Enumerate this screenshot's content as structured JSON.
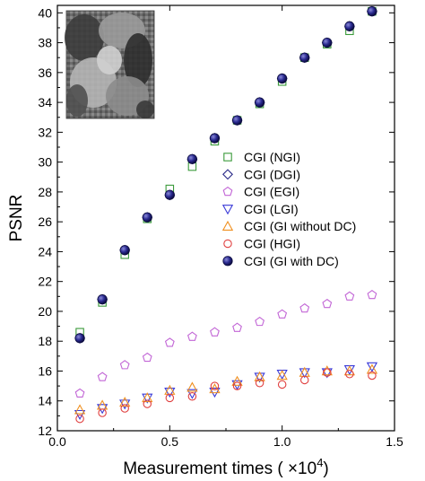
{
  "chart_data": {
    "type": "scatter",
    "xlabel": "Measurement times ( ×10",
    "xlabel_exponent": "4",
    "xlabel_suffix": ")",
    "ylabel": "PSNR",
    "xlim": [
      0.0,
      1.5
    ],
    "ylim": [
      12,
      40.5
    ],
    "x_ticks": [
      0.0,
      0.5,
      1.0,
      1.5
    ],
    "x_tick_labels": [
      "0.0",
      "0.5",
      "1.0",
      "1.5"
    ],
    "y_ticks": [
      12,
      14,
      16,
      18,
      20,
      22,
      24,
      26,
      28,
      30,
      32,
      34,
      36,
      38,
      40
    ],
    "y_tick_labels": [
      "12",
      "14",
      "16",
      "18",
      "20",
      "22",
      "24",
      "26",
      "28",
      "30",
      "32",
      "34",
      "36",
      "38",
      "40"
    ],
    "grid": false,
    "legend_position": "center-right",
    "inset_image": "grayscale-peppers-thumbnail",
    "x": [
      0.1,
      0.2,
      0.3,
      0.4,
      0.5,
      0.6,
      0.7,
      0.8,
      0.9,
      1.0,
      1.1,
      1.2,
      1.3,
      1.4
    ],
    "series": [
      {
        "name": "CGI (NGI)",
        "marker": "square",
        "color": "#3a9a3a",
        "filled": false,
        "values": [
          18.6,
          20.6,
          23.8,
          26.2,
          28.2,
          29.7,
          31.4,
          32.8,
          33.9,
          35.4,
          37.0,
          37.9,
          38.8,
          40.1
        ]
      },
      {
        "name": "CGI (DGI)",
        "marker": "diamond",
        "color": "#2a2a88",
        "filled": false,
        "values": [
          18.2,
          20.8,
          24.1,
          26.3,
          27.8,
          30.2,
          31.6,
          32.8,
          34.0,
          35.6,
          37.0,
          38.0,
          39.1,
          40.1
        ]
      },
      {
        "name": "CGI (EGI)",
        "marker": "pentagon",
        "color": "#c266d6",
        "filled": false,
        "values": [
          14.5,
          15.6,
          16.4,
          16.9,
          17.9,
          18.3,
          18.6,
          18.9,
          19.3,
          19.8,
          20.2,
          20.5,
          21.0,
          21.1
        ]
      },
      {
        "name": "CGI (LGI)",
        "marker": "triangle-down",
        "color": "#3a3ad8",
        "filled": false,
        "values": [
          13.1,
          13.5,
          13.8,
          14.2,
          14.6,
          14.5,
          14.6,
          15.1,
          15.6,
          15.8,
          15.9,
          15.9,
          16.1,
          16.3
        ]
      },
      {
        "name": "CGI (GI without DC)",
        "marker": "triangle-up",
        "color": "#f09020",
        "filled": false,
        "values": [
          13.4,
          13.7,
          13.9,
          14.2,
          14.7,
          14.9,
          14.8,
          15.3,
          15.6,
          15.7,
          15.9,
          16.0,
          16.0,
          16.1
        ]
      },
      {
        "name": "CGI (HGI)",
        "marker": "circle",
        "color": "#e04040",
        "filled": false,
        "values": [
          12.8,
          13.2,
          13.5,
          13.8,
          14.2,
          14.3,
          15.0,
          15.0,
          15.2,
          15.1,
          15.4,
          15.9,
          15.8,
          15.7
        ]
      },
      {
        "name": "CGI (GI with DC)",
        "marker": "circle",
        "color": "#1a1a70",
        "filled": true,
        "values": [
          18.2,
          20.8,
          24.1,
          26.3,
          27.8,
          30.2,
          31.6,
          32.8,
          34.0,
          35.6,
          37.0,
          38.0,
          39.1,
          40.1
        ]
      }
    ]
  }
}
